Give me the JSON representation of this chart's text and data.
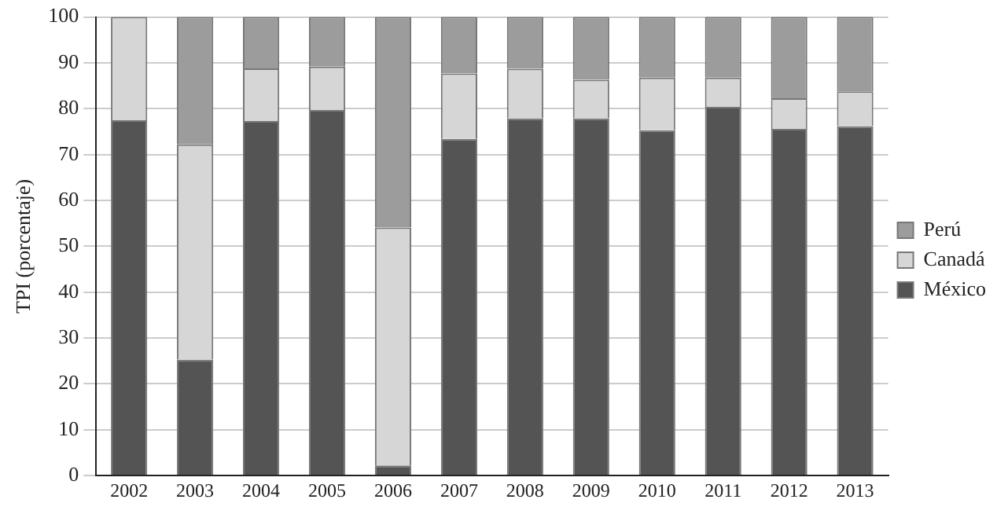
{
  "chart_data": {
    "type": "bar",
    "stacked": true,
    "ylabel": "TPI (porcentaje)",
    "categories": [
      "2002",
      "2003",
      "2004",
      "2005",
      "2006",
      "2007",
      "2008",
      "2009",
      "2010",
      "2011",
      "2012",
      "2013"
    ],
    "series": [
      {
        "name": "México",
        "color": "#545454",
        "values": [
          77.5,
          25.3,
          77.3,
          79.7,
          2.2,
          73.4,
          77.9,
          77.9,
          75.3,
          80.4,
          75.6,
          76.2
        ]
      },
      {
        "name": "Canadá",
        "color": "#d6d6d6",
        "values": [
          22.5,
          46.9,
          11.5,
          9.5,
          51.9,
          14.3,
          10.8,
          8.4,
          11.5,
          6.4,
          6.7,
          7.6
        ]
      },
      {
        "name": "Perú",
        "color": "#9c9c9c",
        "values": [
          0,
          27.8,
          11.2,
          10.8,
          45.9,
          12.3,
          11.3,
          13.7,
          13.2,
          13.2,
          17.7,
          16.2
        ]
      }
    ],
    "ylim": [
      0,
      100
    ],
    "yticks": [
      0,
      10,
      20,
      30,
      40,
      50,
      60,
      70,
      80,
      90,
      100
    ],
    "grid": "y",
    "legend": "right"
  }
}
